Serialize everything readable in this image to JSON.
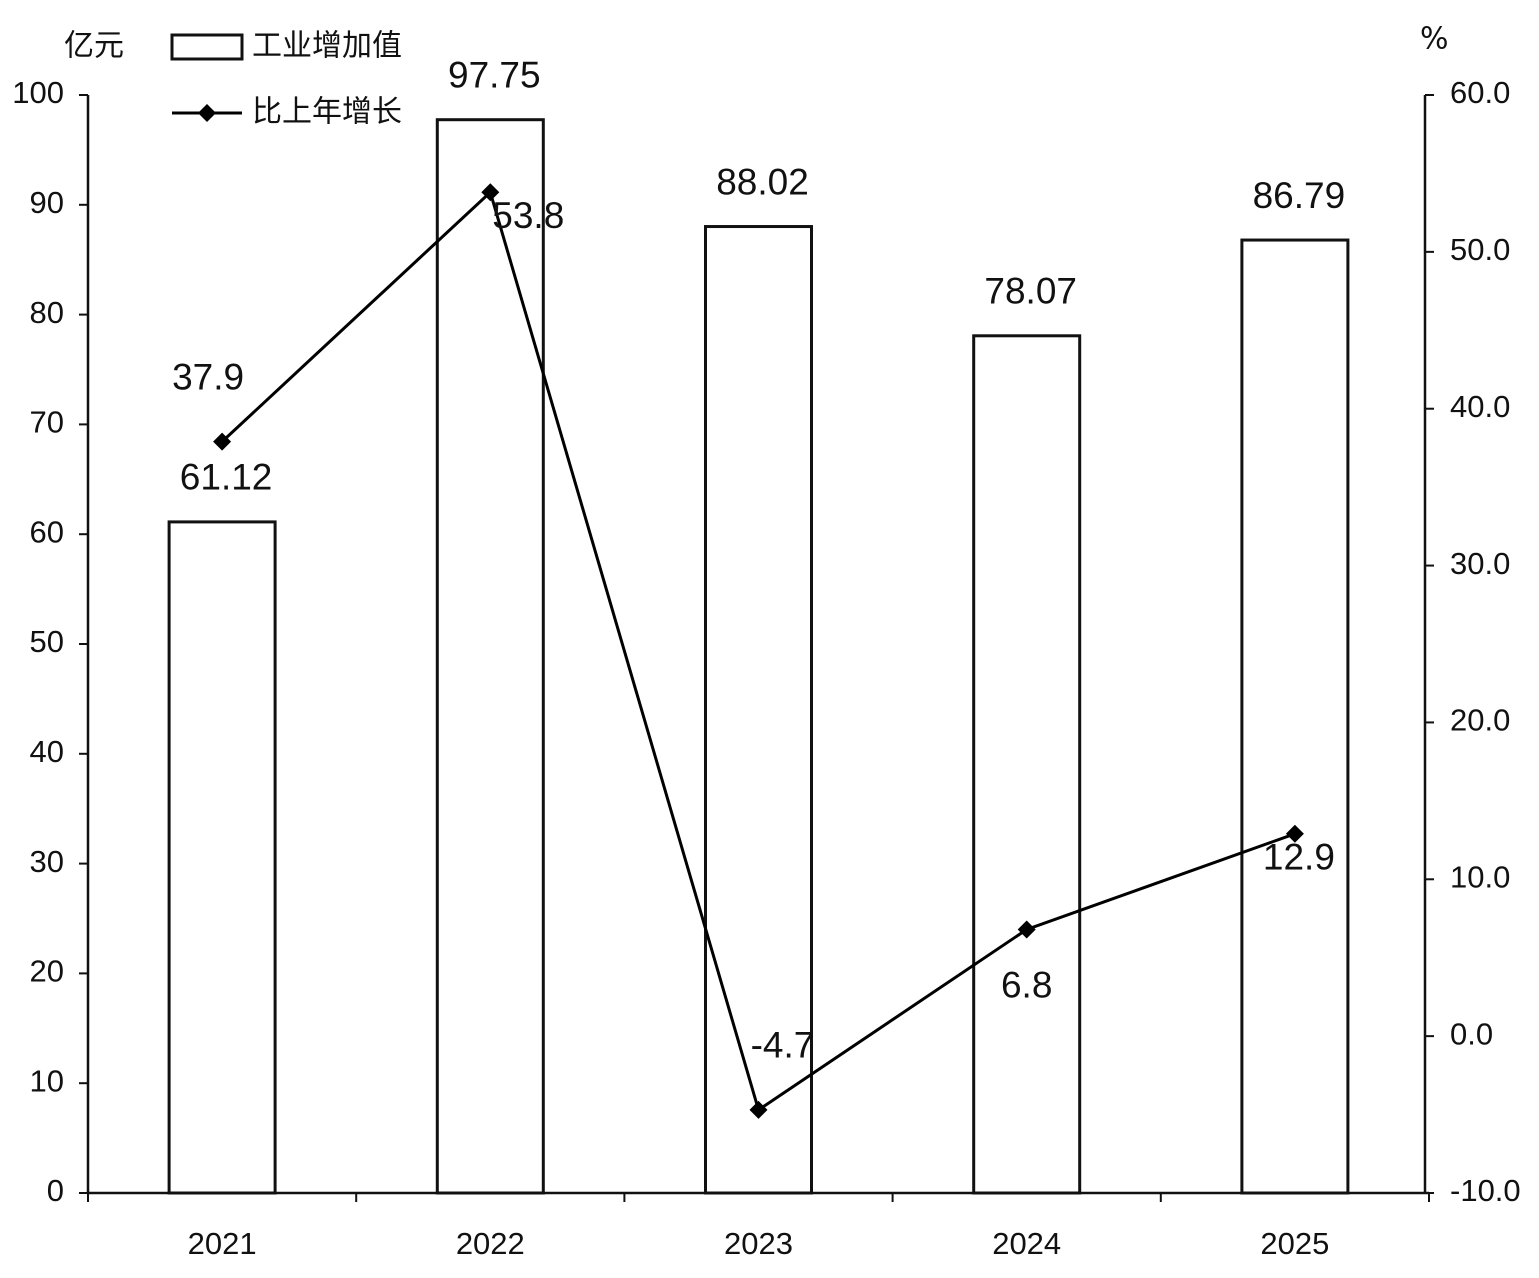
{
  "chart_data": {
    "type": "combo",
    "categories": [
      "2021",
      "2022",
      "2023",
      "2024",
      "2025"
    ],
    "y_label": "亿元",
    "y2_label": "%",
    "series": [
      {
        "name": "工业增加值",
        "type": "bar",
        "color": "#ffffff",
        "values": [
          61.12,
          97.75,
          88.02,
          78.07,
          86.79
        ]
      },
      {
        "name": "比上年增长",
        "type": "line",
        "axis": "y2",
        "color": "#000000",
        "values": [
          37.9,
          53.8,
          -4.7,
          6.8,
          12.9
        ]
      }
    ],
    "ylim": [
      0,
      100
    ],
    "yticks": [
      0,
      10,
      20,
      30,
      40,
      50,
      60,
      70,
      80,
      90,
      100
    ],
    "y2lim": [
      -10,
      60
    ],
    "y2ticks": [
      {
        "value": -10,
        "label": "-10.0"
      },
      {
        "value": 0,
        "label": "0.0"
      },
      {
        "value": 10,
        "label": "10.0"
      },
      {
        "value": 20,
        "label": "20.0"
      },
      {
        "value": 30,
        "label": "30.0"
      },
      {
        "value": 40,
        "label": "40.0"
      },
      {
        "value": 50,
        "label": "50.0"
      },
      {
        "value": 60,
        "label": "60.0"
      }
    ],
    "legend": "upper left",
    "grid": false
  }
}
